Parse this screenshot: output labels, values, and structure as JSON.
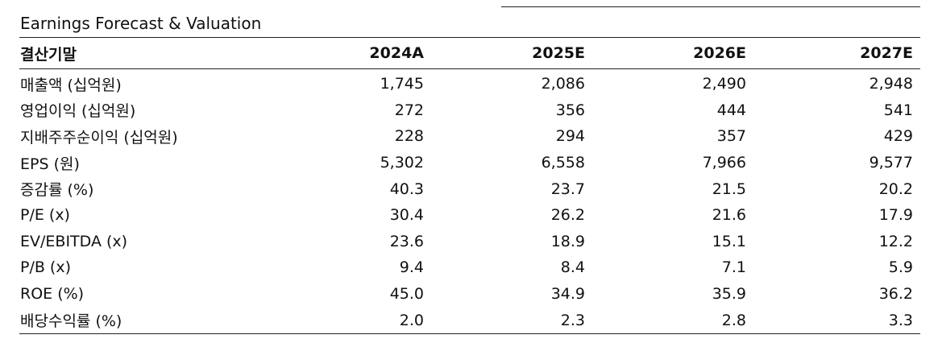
{
  "title": "Earnings Forecast & Valuation",
  "table": {
    "headers": [
      "결산기말",
      "2024A",
      "2025E",
      "2026E",
      "2027E"
    ],
    "rows": [
      {
        "label": "매출액 (십억원)",
        "values": [
          "1,745",
          "2,086",
          "2,490",
          "2,948"
        ]
      },
      {
        "label": "영업이익 (십억원)",
        "values": [
          "272",
          "356",
          "444",
          "541"
        ]
      },
      {
        "label": "지배주주순이익 (십억원)",
        "values": [
          "228",
          "294",
          "357",
          "429"
        ]
      },
      {
        "label": "EPS (원)",
        "values": [
          "5,302",
          "6,558",
          "7,966",
          "9,577"
        ]
      },
      {
        "label": "증감률 (%)",
        "values": [
          "40.3",
          "23.7",
          "21.5",
          "20.2"
        ]
      },
      {
        "label": "P/E (x)",
        "values": [
          "30.4",
          "26.2",
          "21.6",
          "17.9"
        ]
      },
      {
        "label": "EV/EBITDA (x)",
        "values": [
          "23.6",
          "18.9",
          "15.1",
          "12.2"
        ]
      },
      {
        "label": "P/B (x)",
        "values": [
          "9.4",
          "8.4",
          "7.1",
          "5.9"
        ]
      },
      {
        "label": "ROE (%)",
        "values": [
          "45.0",
          "34.9",
          "35.9",
          "36.2"
        ]
      },
      {
        "label": "배당수익률 (%)",
        "values": [
          "2.0",
          "2.3",
          "2.8",
          "3.3"
        ]
      }
    ]
  }
}
